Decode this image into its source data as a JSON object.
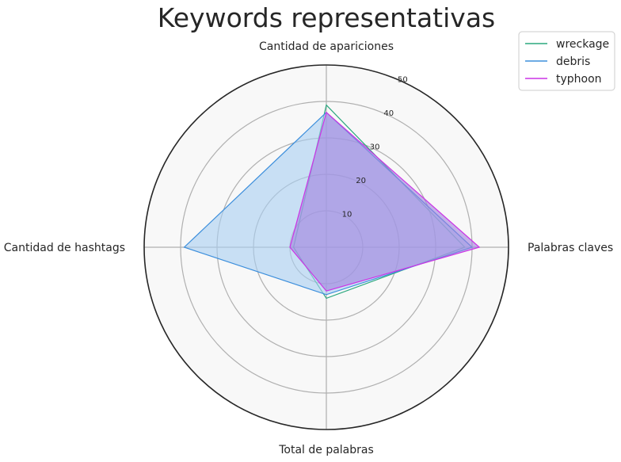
{
  "chart_data": {
    "type": "radar",
    "title": "Keywords representativas",
    "categories": [
      "Cantidad de apariciones",
      "Palabras claves",
      "Total de palabras",
      "Cantidad de hashtags"
    ],
    "rticks": [
      10,
      20,
      30,
      40,
      50
    ],
    "rlim": [
      0,
      50
    ],
    "legend_position": "top-right",
    "series": [
      {
        "name": "wreckage",
        "color": "#2ca87f",
        "fill": "#2ca87f",
        "fill_opacity": 0.0,
        "values": [
          39,
          38,
          14,
          9
        ]
      },
      {
        "name": "debris",
        "color": "#3d8fdc",
        "fill": "#a9cef2",
        "fill_opacity": 0.6,
        "values": [
          37,
          40,
          13,
          39
        ]
      },
      {
        "name": "typhoon",
        "color": "#cc33e6",
        "fill": "#a080dd",
        "fill_opacity": 0.6,
        "values": [
          37,
          42,
          12,
          10
        ]
      }
    ]
  }
}
